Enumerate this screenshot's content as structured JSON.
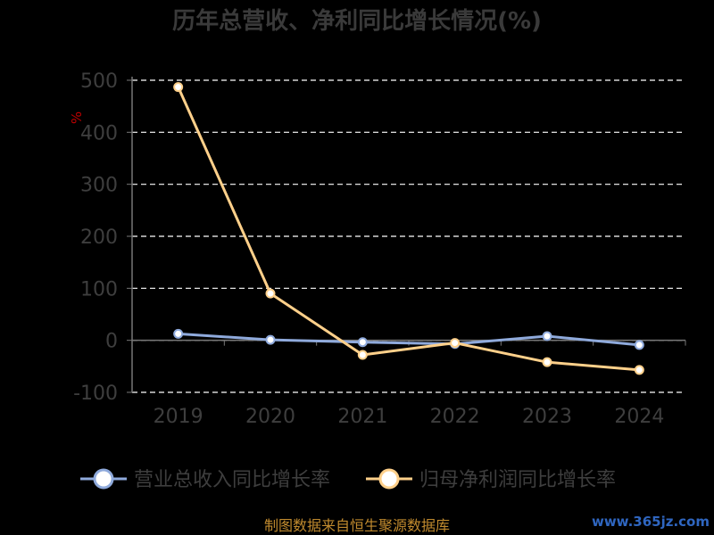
{
  "chart_data": {
    "type": "line",
    "title": "历年总营收、净利同比增长情况(%)",
    "unit_label": "%",
    "categories": [
      "2019",
      "2020",
      "2021",
      "2022",
      "2023",
      "2024"
    ],
    "yticks": [
      "500",
      "400",
      "300",
      "200",
      "100",
      "0",
      "-100"
    ],
    "ylim": [
      -100,
      500
    ],
    "grid": true,
    "legend_position": "bottom",
    "series": [
      {
        "name": "营业总收入同比增长率",
        "color": "#8faadc",
        "values": [
          12.5,
          1.0,
          -3.5,
          -7.0,
          8.0,
          -9.0
        ]
      },
      {
        "name": "归母净利润同比增长率",
        "color": "#ffd08a",
        "values": [
          487.0,
          90.0,
          -28.0,
          -5.0,
          -42.0,
          -57.0
        ]
      }
    ]
  },
  "footer": {
    "source": "制图数据来自恒生聚源数据库",
    "watermark": "www.365jz.com"
  }
}
